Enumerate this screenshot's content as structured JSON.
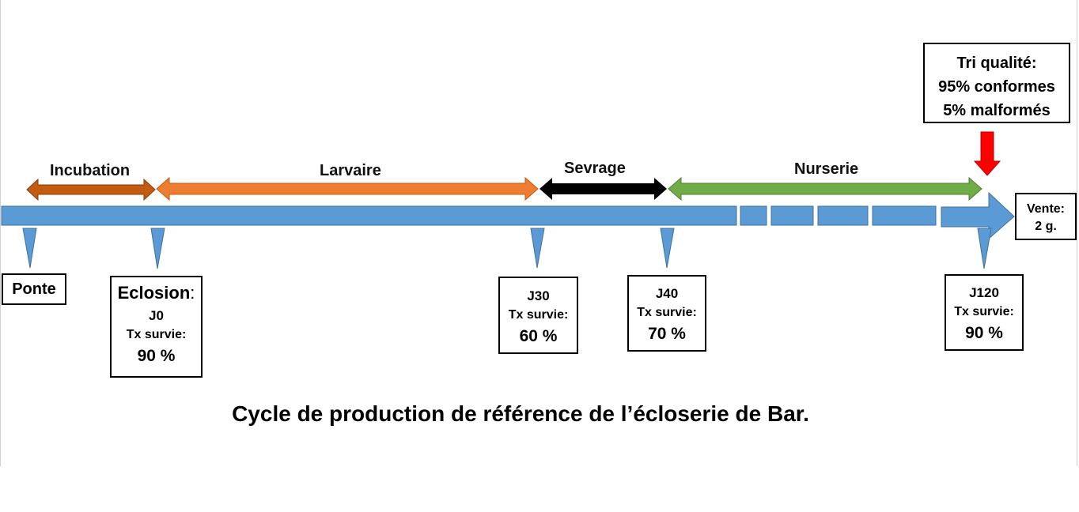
{
  "title": "Cycle de production de référence de l’écloserie de Bar.",
  "colors": {
    "timeline": "#5b9bd5",
    "timeline_border": "#41719c",
    "incubation": "#c55a11",
    "larvaire": "#ed7d31",
    "sevrage": "#000000",
    "nurserie": "#70ad47",
    "quality_arrow": "#ff0000"
  },
  "phases": [
    {
      "label": "Incubation"
    },
    {
      "label": "Larvaire"
    },
    {
      "label": "Sevrage"
    },
    {
      "label": "Nurserie"
    }
  ],
  "milestones": {
    "ponte": {
      "label": "Ponte"
    },
    "eclosion": {
      "title": "Eclosion",
      "suffix": ":",
      "day": "J0",
      "survival_label": "Tx survie:",
      "survival_value": "90 %"
    },
    "j30": {
      "day": "J30",
      "survival_label": "Tx survie:",
      "survival_value": "60 %"
    },
    "j40": {
      "day": "J40",
      "survival_label": "Tx survie:",
      "survival_value": "70 %"
    },
    "j120": {
      "day": "J120",
      "survival_label": "Tx survie:",
      "survival_value": "90 %"
    }
  },
  "quality": {
    "line1": "Tri qualité:",
    "line2": "95% conformes",
    "line3": "5% malformés"
  },
  "sale": {
    "line1": "Vente:",
    "line2": "2 g."
  }
}
